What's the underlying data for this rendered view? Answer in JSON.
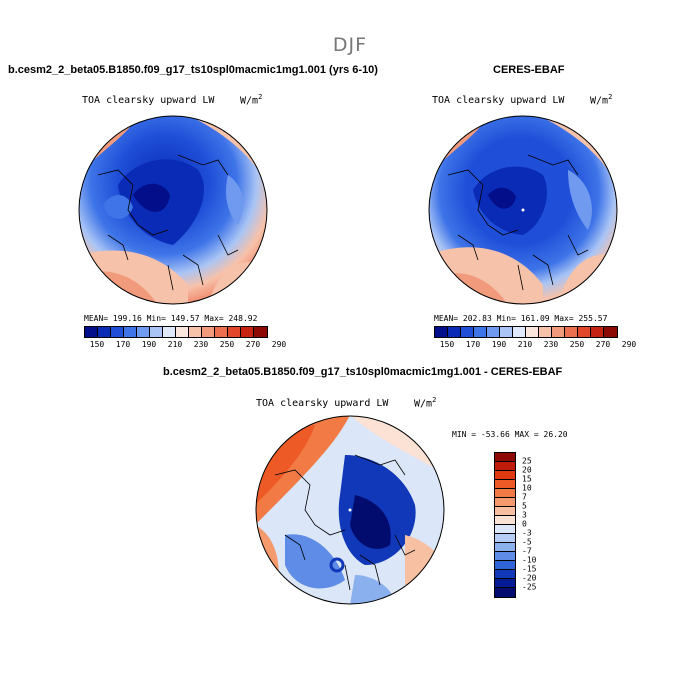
{
  "title": "DJF",
  "panels": {
    "model": {
      "title": "b.cesm2_2_beta05.B1850.f09_g17_ts10spl0macmic1mg1.001 (yrs 6-10)",
      "variable": "TOA clearsky upward LW",
      "units_base": "W/m",
      "units_exp": "2",
      "stats": "MEAN= 199.16  Min= 149.57  Max= 248.92"
    },
    "obs": {
      "title": "CERES-EBAF",
      "variable": "TOA clearsky upward LW",
      "units_base": "W/m",
      "units_exp": "2",
      "stats": "MEAN= 202.83  Min= 161.09  Max= 255.57"
    },
    "diff": {
      "title": "b.cesm2_2_beta05.B1850.f09_g17_ts10spl0macmic1mg1.001 - CERES-EBAF",
      "variable": "TOA clearsky upward LW",
      "units_base": "W/m",
      "units_exp": "2",
      "stats": "MIN = -53.66 MAX =  26.20"
    }
  },
  "colorbars": {
    "absolute": {
      "labels": [
        "150",
        "170",
        "190",
        "210",
        "230",
        "250",
        "270",
        "290"
      ],
      "colors": [
        "#020e8a",
        "#0a2bb5",
        "#1f4fd8",
        "#3e74e8",
        "#6f9af0",
        "#a9c4f5",
        "#dfe9fb",
        "#fbe6dd",
        "#f7c2aa",
        "#f29b7c",
        "#ec7050",
        "#e2472a",
        "#c72312",
        "#8c0a03"
      ]
    },
    "difference": {
      "labels": [
        "25",
        "20",
        "15",
        "10",
        "7",
        "5",
        "3",
        "0",
        "-3",
        "-5",
        "-7",
        "-10",
        "-15",
        "-20",
        "-25"
      ],
      "colors": [
        "#8c0a03",
        "#c01a08",
        "#e2380f",
        "#ee5a26",
        "#f27a45",
        "#f59a6c",
        "#f8c0a3",
        "#fbe2d4",
        "#dbe6f8",
        "#b5cdf4",
        "#8bb0ee",
        "#5e8ce6",
        "#2f63d8",
        "#1038b8",
        "#051a95",
        "#020c6e"
      ]
    }
  }
}
